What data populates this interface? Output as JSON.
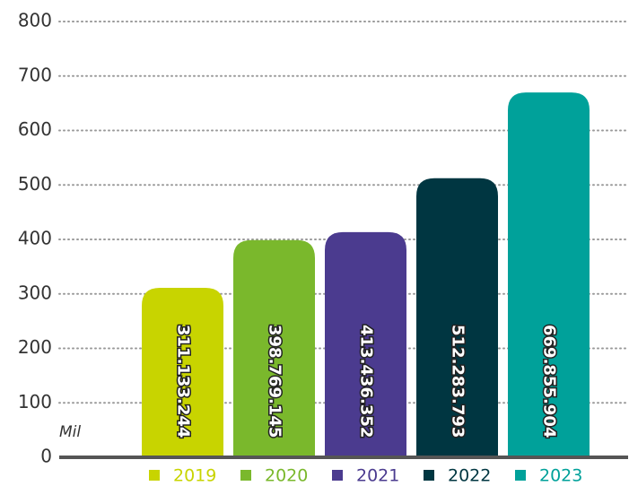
{
  "chart_data": {
    "type": "bar",
    "y_label": "Mil",
    "categories": [
      "2019",
      "2020",
      "2021",
      "2022",
      "2023"
    ],
    "values": [
      311.133244,
      398.769145,
      413.436352,
      512.283793,
      669.855904
    ],
    "value_labels": [
      "311.133.244",
      "398.769.145",
      "413.436.352",
      "512.283.793",
      "669.855.904"
    ],
    "colors": [
      "#c8d400",
      "#7ab82c",
      "#4b3b8f",
      "#003641",
      "#00a19a"
    ],
    "ylim": [
      0,
      800
    ],
    "yticks": [
      0,
      100,
      200,
      300,
      400,
      500,
      600,
      700,
      800
    ],
    "grid": true,
    "legend": "bottom"
  }
}
